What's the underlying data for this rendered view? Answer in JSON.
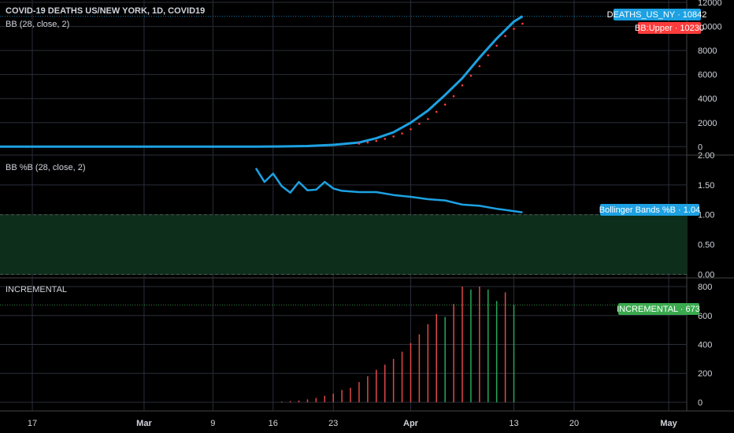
{
  "header": {
    "title": "COVID-19 DEATHS US/NEW YORK, 1D, COVID19",
    "bb_label": "BB (28, close, 2)",
    "pctb_label": "BB %B (28, close, 2)",
    "incr_label": "INCREMENTAL"
  },
  "tags": {
    "deaths": "DEATHS_US_NY · 10842",
    "bb_upper": "BB:Upper · 10230",
    "pctb": "Bollinger Bands %B · 1.04",
    "incr": "INCREMENTAL · 673"
  },
  "colors": {
    "background": "#000000",
    "grid": "#2a2e39",
    "deaths_line": "#1da1e2",
    "bb_upper": "#ff3b3b",
    "pctb_line": "#1da1e2",
    "band_fill": "#0c2e1a",
    "band_border": "#4a5a50",
    "bar_up": "#26a65b",
    "bar_down": "#e04848",
    "incr_tag": "#3aaa4e"
  },
  "x_axis": {
    "labels": [
      {
        "text": "17",
        "date": "2020-02-17",
        "major": false
      },
      {
        "text": "Mar",
        "date": "2020-03-01",
        "major": true
      },
      {
        "text": "9",
        "date": "2020-03-09",
        "major": false
      },
      {
        "text": "16",
        "date": "2020-03-16",
        "major": false
      },
      {
        "text": "23",
        "date": "2020-03-23",
        "major": false
      },
      {
        "text": "Apr",
        "date": "2020-04-01",
        "major": true
      },
      {
        "text": "13",
        "date": "2020-04-13",
        "major": false
      },
      {
        "text": "20",
        "date": "2020-04-20",
        "major": false
      },
      {
        "text": "May",
        "date": "2020-05-01",
        "major": true
      }
    ]
  },
  "chart_data": [
    {
      "type": "line",
      "title": "COVID-19 DEATHS US/NEW YORK, 1D, COVID19",
      "ylim": [
        -700,
        12200
      ],
      "yticks": [
        0,
        2000,
        4000,
        6000,
        8000,
        10000,
        12000
      ],
      "series": [
        {
          "name": "DEATHS_US_NY",
          "x": [
            "2020-02-08",
            "2020-02-15",
            "2020-02-22",
            "2020-02-29",
            "2020-03-07",
            "2020-03-14",
            "2020-03-17",
            "2020-03-20",
            "2020-03-23",
            "2020-03-26",
            "2020-03-28",
            "2020-03-30",
            "2020-04-01",
            "2020-04-03",
            "2020-04-05",
            "2020-04-07",
            "2020-04-09",
            "2020-04-11",
            "2020-04-13",
            "2020-04-14"
          ],
          "values": [
            0,
            0,
            0,
            0,
            0,
            0,
            20,
            50,
            150,
            350,
            700,
            1200,
            2000,
            3000,
            4300,
            5700,
            7400,
            9000,
            10400,
            10842
          ]
        },
        {
          "name": "BB:Upper",
          "style": "dots",
          "x": [
            "2020-03-26",
            "2020-03-27",
            "2020-03-28",
            "2020-03-29",
            "2020-03-30",
            "2020-03-31",
            "2020-04-01",
            "2020-04-02",
            "2020-04-03",
            "2020-04-04",
            "2020-04-05",
            "2020-04-06",
            "2020-04-07",
            "2020-04-08",
            "2020-04-09",
            "2020-04-10",
            "2020-04-11",
            "2020-04-12",
            "2020-04-13",
            "2020-04-14"
          ],
          "values": [
            250,
            350,
            480,
            650,
            850,
            1100,
            1450,
            1900,
            2300,
            2900,
            3500,
            4200,
            5100,
            5900,
            6700,
            7600,
            8400,
            9200,
            9800,
            10230
          ]
        }
      ]
    },
    {
      "type": "line",
      "title": "BB %B (28, close, 2)",
      "ylim": [
        -0.06,
        2.0
      ],
      "yticks": [
        0.0,
        0.5,
        1.0,
        1.5,
        2.0
      ],
      "band": [
        0,
        1
      ],
      "series": [
        {
          "name": "Bollinger Bands %B",
          "x": [
            "2020-03-14",
            "2020-03-15",
            "2020-03-16",
            "2020-03-17",
            "2020-03-18",
            "2020-03-19",
            "2020-03-20",
            "2020-03-21",
            "2020-03-22",
            "2020-03-23",
            "2020-03-24",
            "2020-03-26",
            "2020-03-28",
            "2020-03-30",
            "2020-04-01",
            "2020-04-03",
            "2020-04-05",
            "2020-04-07",
            "2020-04-09",
            "2020-04-11",
            "2020-04-14"
          ],
          "values": [
            1.78,
            1.55,
            1.69,
            1.48,
            1.37,
            1.55,
            1.41,
            1.42,
            1.55,
            1.44,
            1.4,
            1.38,
            1.38,
            1.33,
            1.3,
            1.26,
            1.24,
            1.17,
            1.15,
            1.1,
            1.04
          ]
        }
      ]
    },
    {
      "type": "bar",
      "title": "INCREMENTAL",
      "ylim": [
        -60,
        860
      ],
      "yticks": [
        0,
        200,
        400,
        600,
        800
      ],
      "x": [
        "2020-03-17",
        "2020-03-18",
        "2020-03-19",
        "2020-03-20",
        "2020-03-21",
        "2020-03-22",
        "2020-03-23",
        "2020-03-24",
        "2020-03-25",
        "2020-03-26",
        "2020-03-27",
        "2020-03-28",
        "2020-03-29",
        "2020-03-30",
        "2020-03-31",
        "2020-04-01",
        "2020-04-02",
        "2020-04-03",
        "2020-04-04",
        "2020-04-05",
        "2020-04-06",
        "2020-04-07",
        "2020-04-08",
        "2020-04-09",
        "2020-04-10",
        "2020-04-11",
        "2020-04-12",
        "2020-04-13"
      ],
      "values": [
        5,
        8,
        12,
        20,
        30,
        45,
        60,
        85,
        100,
        140,
        180,
        225,
        260,
        300,
        350,
        410,
        470,
        540,
        610,
        590,
        680,
        800,
        780,
        800,
        780,
        700,
        760,
        673
      ],
      "direction": [
        "up",
        "up",
        "up",
        "up",
        "up",
        "up",
        "up",
        "up",
        "up",
        "up",
        "up",
        "up",
        "up",
        "up",
        "up",
        "up",
        "up",
        "up",
        "up",
        "down",
        "up",
        "up",
        "down",
        "up",
        "down",
        "down",
        "up",
        "down"
      ]
    }
  ]
}
